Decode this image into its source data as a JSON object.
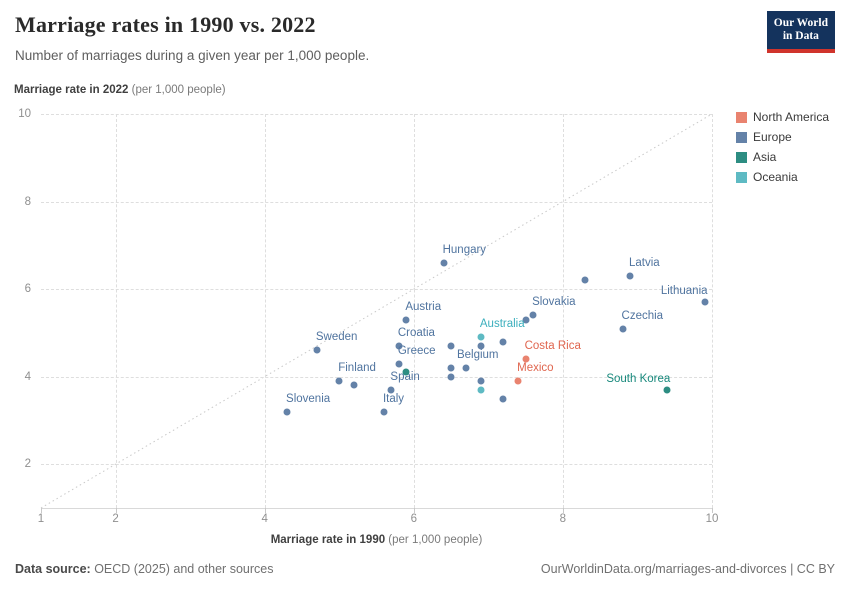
{
  "header": {
    "title": "Marriage rates in 1990 vs. 2022",
    "subtitle": "Number of marriages during a given year per 1,000 people.",
    "logo": {
      "line1": "Our World",
      "line2": "in Data",
      "bg_color": "#14335d",
      "stripe_color": "#d0342c"
    }
  },
  "legend": {
    "items": [
      {
        "label": "North America",
        "color": "#e9836f"
      },
      {
        "label": "Europe",
        "color": "#6482a8"
      },
      {
        "label": "Asia",
        "color": "#2d8d82"
      },
      {
        "label": "Oceania",
        "color": "#5ebac3"
      }
    ]
  },
  "chart_data": {
    "type": "scatter",
    "title": "Marriage rates in 1990 vs. 2022",
    "xlabel_bold": "Marriage rate in 1990",
    "xlabel_unit": " (per 1,000 people)",
    "ylabel_bold": "Marriage rate in 2022",
    "ylabel_unit": " (per 1,000 people)",
    "x_range": [
      1,
      10
    ],
    "y_range": [
      1,
      10
    ],
    "x_ticks": [
      1,
      2,
      4,
      6,
      8,
      10
    ],
    "y_ticks": [
      2,
      4,
      6,
      8,
      10
    ],
    "x_gridlines": [
      2,
      4,
      6,
      8,
      10
    ],
    "y_gridlines": [
      2,
      4,
      6,
      8,
      10
    ],
    "grid": "dashed",
    "identity_line": true,
    "legend_position": "top-right",
    "series": [
      {
        "name": "North America",
        "color": "#e9836f",
        "label_color": "#e0664f",
        "points": [
          {
            "x": 7.5,
            "y": 4.4,
            "label": "Costa Rica"
          },
          {
            "x": 7.4,
            "y": 3.9,
            "label": "Mexico"
          }
        ]
      },
      {
        "name": "Europe",
        "color": "#6482a8",
        "label_color": "#50749f",
        "points": [
          {
            "x": 6.4,
            "y": 6.6,
            "label": "Hungary"
          },
          {
            "x": 8.9,
            "y": 6.3,
            "label": "Latvia"
          },
          {
            "x": 8.3,
            "y": 6.2
          },
          {
            "x": 9.9,
            "y": 5.7,
            "label": "Lithuania",
            "anchor": "end"
          },
          {
            "x": 7.6,
            "y": 5.4,
            "label": "Slovakia"
          },
          {
            "x": 7.5,
            "y": 5.3
          },
          {
            "x": 8.8,
            "y": 5.1,
            "label": "Czechia"
          },
          {
            "x": 5.9,
            "y": 5.3,
            "label": "Austria"
          },
          {
            "x": 5.8,
            "y": 4.7,
            "label": "Croatia"
          },
          {
            "x": 6.5,
            "y": 4.7
          },
          {
            "x": 6.9,
            "y": 4.7
          },
          {
            "x": 7.2,
            "y": 4.8
          },
          {
            "x": 4.7,
            "y": 4.6,
            "label": "Sweden"
          },
          {
            "x": 5.8,
            "y": 4.3,
            "label": "Greece"
          },
          {
            "x": 6.7,
            "y": 4.2,
            "label": "Belgium",
            "dx": -8
          },
          {
            "x": 6.5,
            "y": 4.2
          },
          {
            "x": 6.5,
            "y": 4.0
          },
          {
            "x": 5.0,
            "y": 3.9,
            "label": "Finland"
          },
          {
            "x": 5.2,
            "y": 3.8
          },
          {
            "x": 5.7,
            "y": 3.7,
            "label": "Spain"
          },
          {
            "x": 6.9,
            "y": 3.9
          },
          {
            "x": 7.2,
            "y": 3.5
          },
          {
            "x": 5.6,
            "y": 3.2,
            "label": "Italy"
          },
          {
            "x": 4.3,
            "y": 3.2,
            "label": "Slovenia"
          }
        ]
      },
      {
        "name": "Asia",
        "color": "#2d8d82",
        "label_color": "#18897c",
        "points": [
          {
            "x": 5.9,
            "y": 4.1
          },
          {
            "x": 9.4,
            "y": 3.7,
            "label": "South Korea",
            "anchor": "end"
          }
        ]
      },
      {
        "name": "Oceania",
        "color": "#5ebac3",
        "label_color": "#3cafbd",
        "points": [
          {
            "x": 6.9,
            "y": 4.9,
            "label": "Australia"
          },
          {
            "x": 6.9,
            "y": 3.7
          }
        ]
      }
    ]
  },
  "footer": {
    "source_label": "Data source:",
    "source_text": " OECD (2025) and other sources",
    "link_text": "OurWorldinData.org/marriages-and-divorces | CC BY"
  }
}
